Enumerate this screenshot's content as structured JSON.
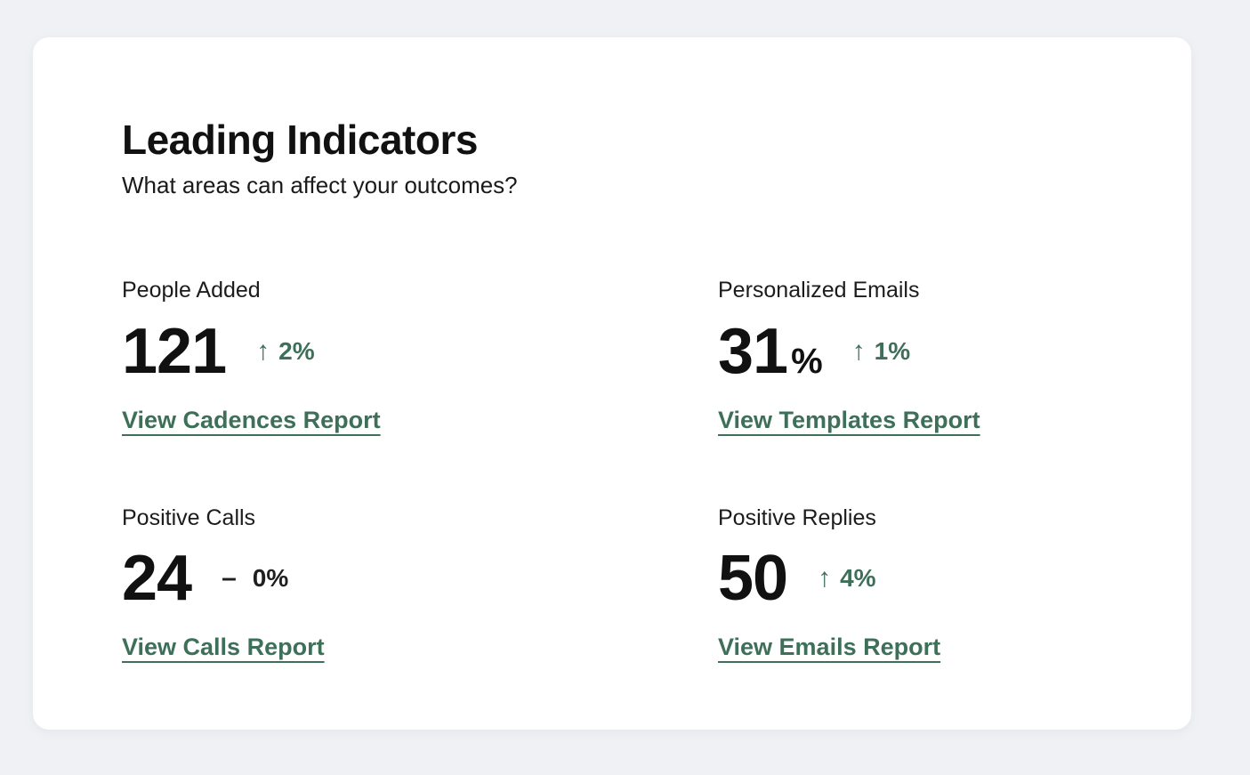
{
  "colors": {
    "accent_green": "#3e7059",
    "neutral_delta": "#1f1f1f",
    "page_background": "#eff1f5",
    "card_background": "#ffffff"
  },
  "card": {
    "title": "Leading Indicators",
    "subtitle": "What areas can affect your outcomes?"
  },
  "icons": {
    "up_arrow": "↑",
    "flat_dash": "–"
  },
  "metrics": [
    {
      "label": "People Added",
      "value": "121",
      "value_suffix": "",
      "delta": "2%",
      "delta_direction": "up",
      "link": "View Cadences Report"
    },
    {
      "label": "Personalized Emails",
      "value": "31",
      "value_suffix": "%",
      "delta": "1%",
      "delta_direction": "up",
      "link": "View Templates Report"
    },
    {
      "label": "Positive Calls",
      "value": "24",
      "value_suffix": "",
      "delta": "0%",
      "delta_direction": "flat",
      "link": "View Calls Report"
    },
    {
      "label": "Positive Replies",
      "value": "50",
      "value_suffix": "",
      "delta": "4%",
      "delta_direction": "up",
      "link": "View Emails Report"
    }
  ]
}
